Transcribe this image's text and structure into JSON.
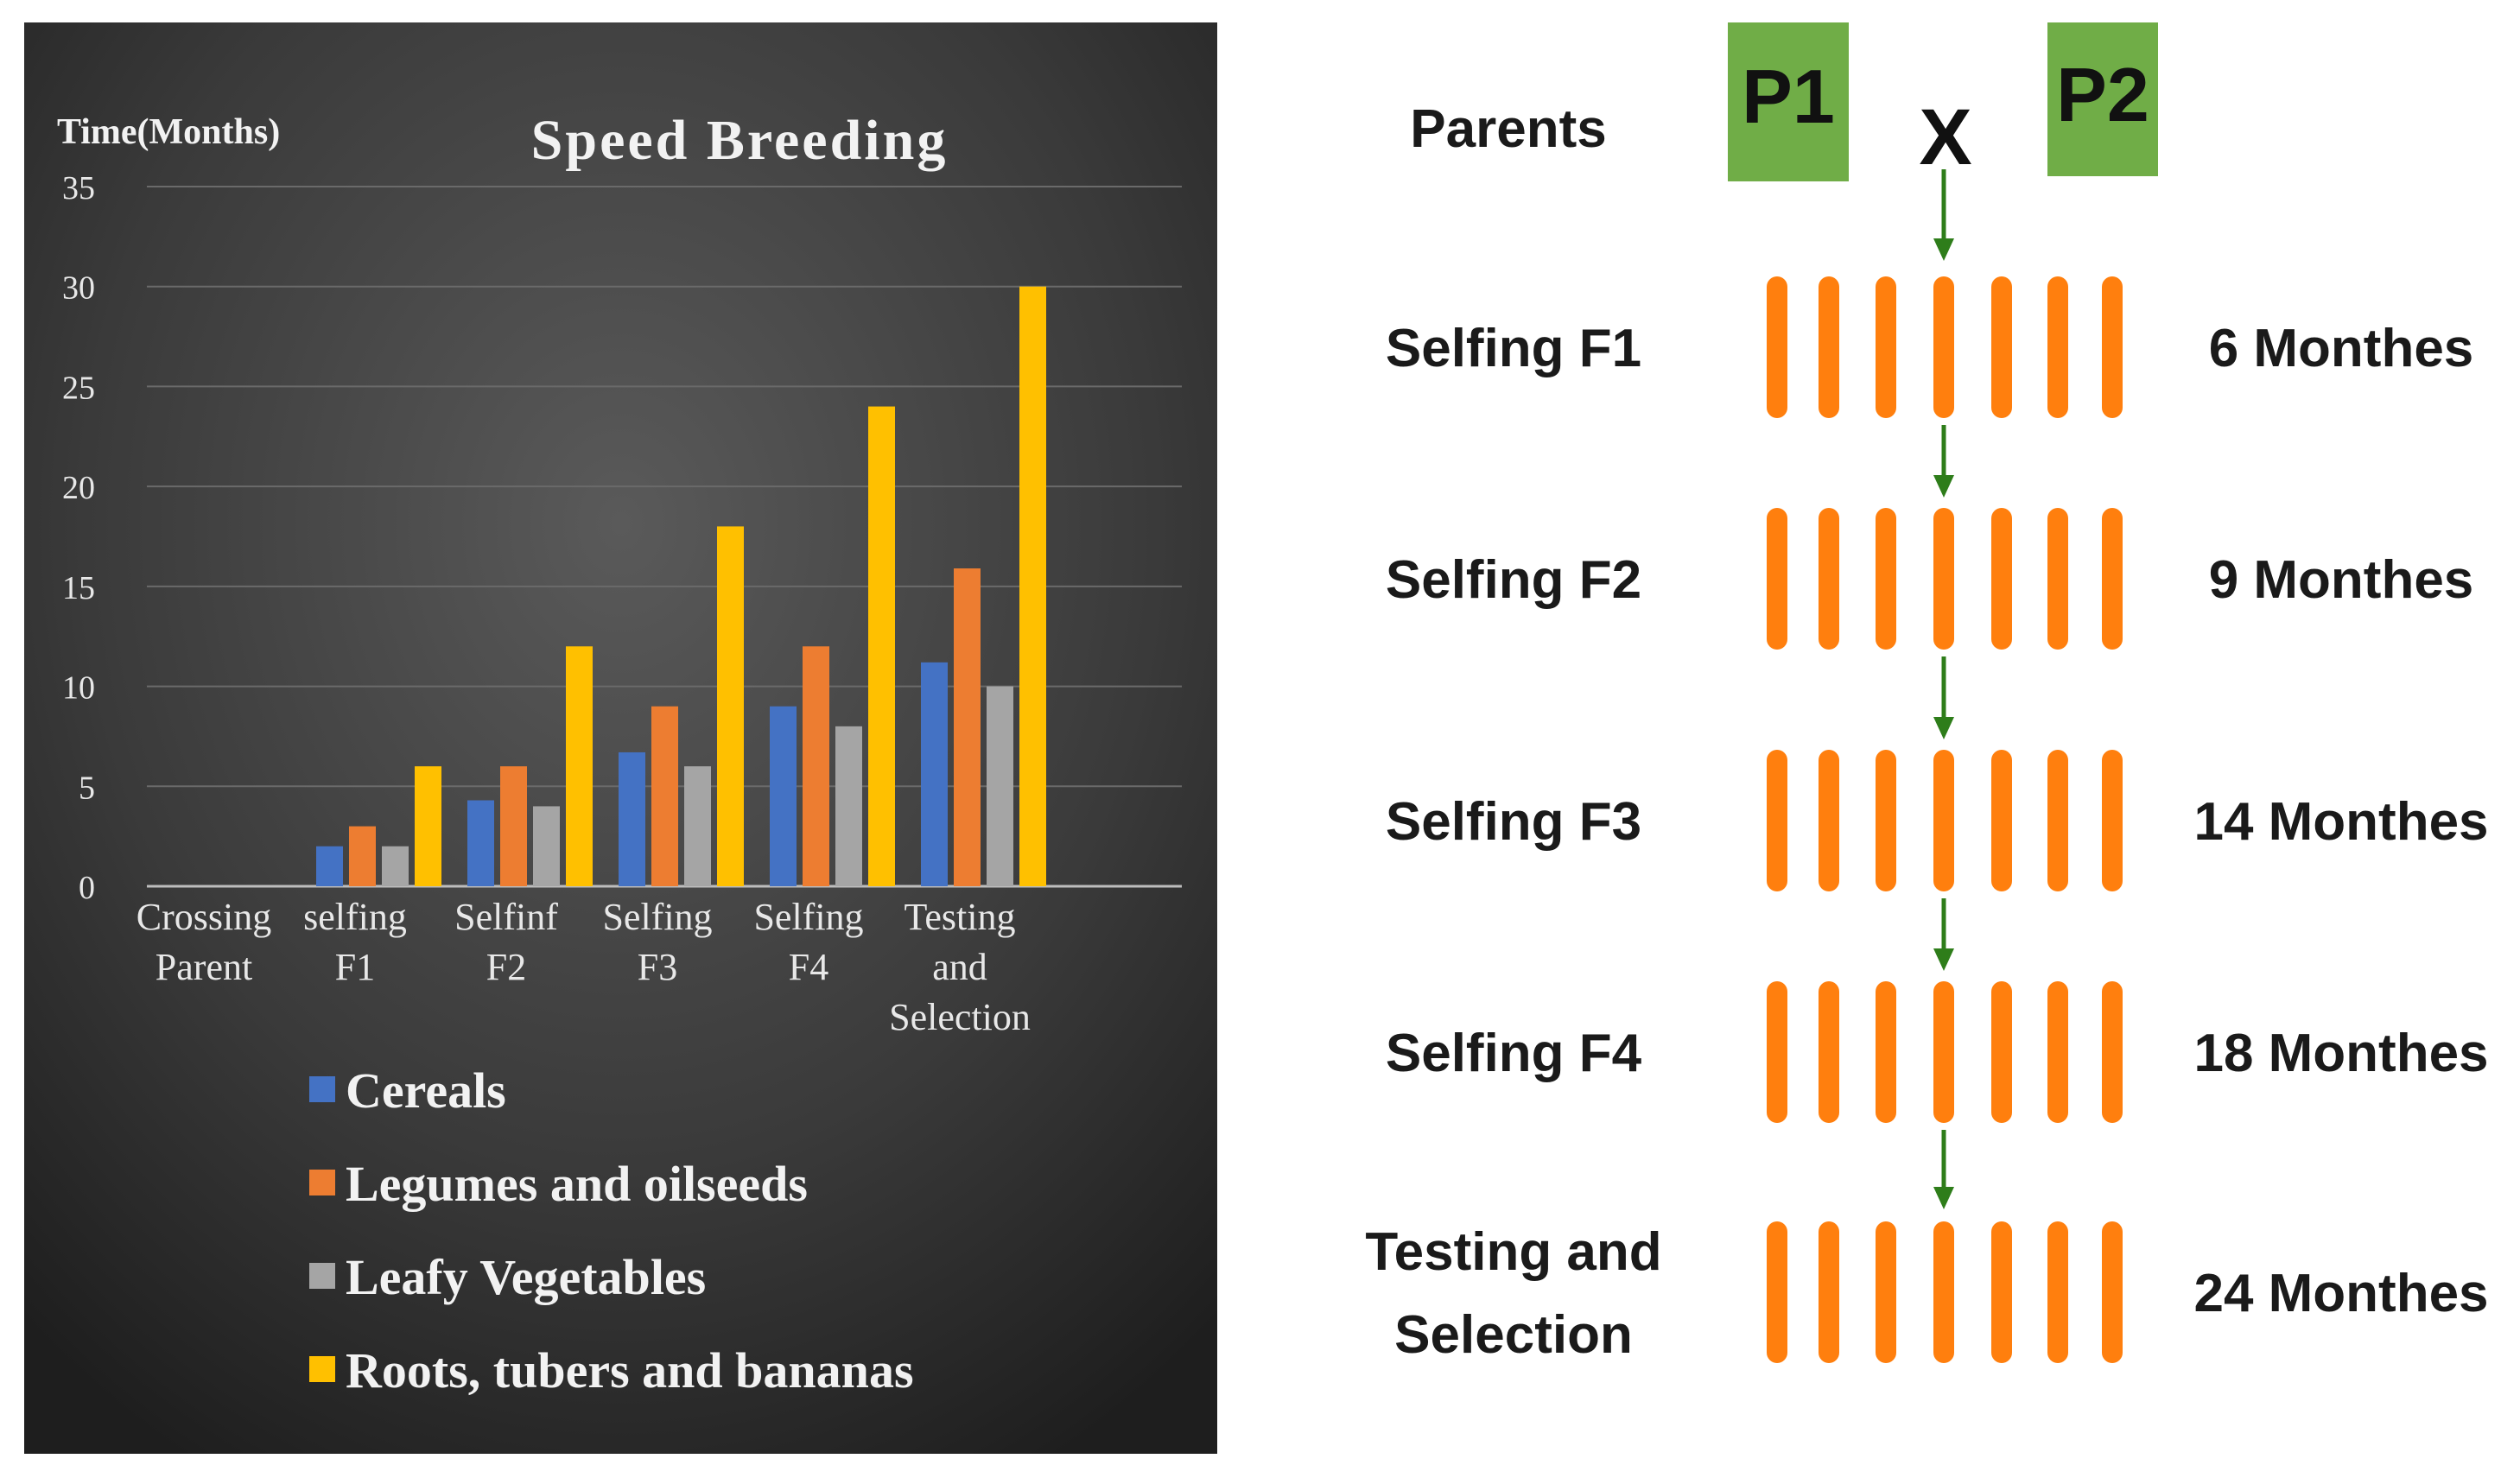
{
  "chart_data": {
    "type": "bar",
    "title": "Speed Breeding",
    "ylabel": "Time(Months)",
    "xlabel": "",
    "ylim": [
      0,
      35
    ],
    "yticks": [
      0,
      5,
      10,
      15,
      20,
      25,
      30,
      35
    ],
    "grid": true,
    "legend_position": "bottom",
    "categories": [
      [
        "Crossing",
        "Parent"
      ],
      [
        "selfing",
        "F1"
      ],
      [
        "Selfinf",
        "F2"
      ],
      [
        "Selfing",
        "F3"
      ],
      [
        "Selfing",
        "F4"
      ],
      [
        "Testing",
        "and",
        "Selection"
      ]
    ],
    "series": [
      {
        "name": "Cereals",
        "color": "#4472c4",
        "values": [
          0,
          2,
          4.3,
          6.7,
          9,
          11.2
        ]
      },
      {
        "name": "Legumes and oilseeds",
        "color": "#ed7d31",
        "values": [
          0,
          3,
          6,
          9,
          12,
          15.9
        ]
      },
      {
        "name": "Leafy Vegetables",
        "color": "#a5a5a5",
        "values": [
          0,
          2,
          4,
          6,
          8,
          10
        ]
      },
      {
        "name": "Roots, tubers and bananas",
        "color": "#ffc000",
        "values": [
          0,
          6,
          12,
          18,
          24,
          30
        ]
      }
    ]
  },
  "diagram": {
    "parents_label": "Parents",
    "p1": "P1",
    "p2": "P2",
    "cross_symbol": "X",
    "colors": {
      "parent_box": "#70ad47",
      "plant": "#ff7f0e",
      "arrow": "#2e7d1a"
    },
    "generations": [
      {
        "label": [
          "Selfing F1"
        ],
        "duration": "6 Monthes"
      },
      {
        "label": [
          "Selfing F2"
        ],
        "duration": "9 Monthes"
      },
      {
        "label": [
          "Selfing F3"
        ],
        "duration": "14 Monthes"
      },
      {
        "label": [
          "Selfing F4"
        ],
        "duration": "18 Monthes"
      },
      {
        "label": [
          "Testing and",
          "Selection"
        ],
        "duration": "24 Monthes"
      }
    ]
  }
}
